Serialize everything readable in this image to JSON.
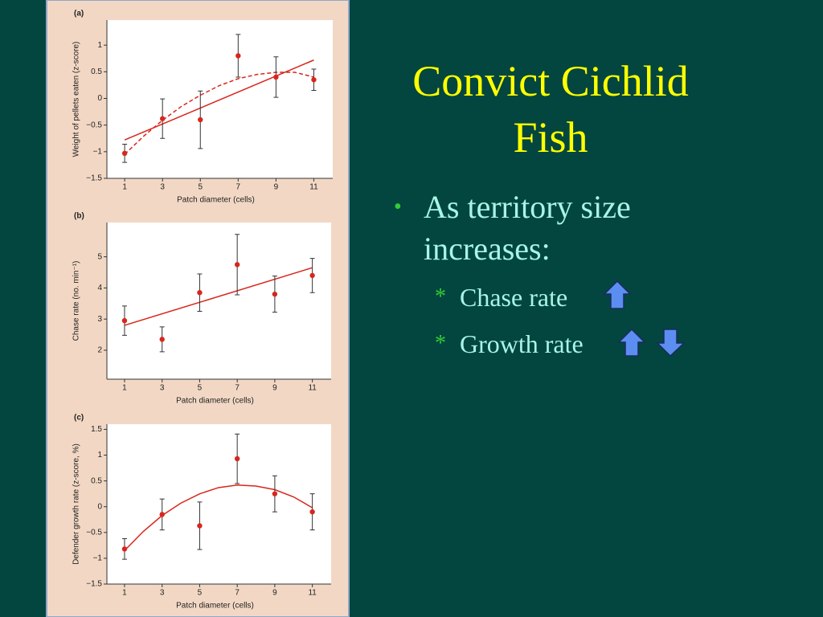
{
  "title": "Convict Cichlid Fish",
  "bullet": "As territory size increases:",
  "sub_bullets": [
    "Chase rate",
    "Growth rate"
  ],
  "chart_data": [
    {
      "type": "scatter",
      "panel": "(a)",
      "xlabel": "Patch diameter (cells)",
      "ylabel": "Weight of pellets eaten (z-score)",
      "x": [
        1,
        3,
        5,
        7,
        9,
        11
      ],
      "values": [
        -1.03,
        -0.38,
        -0.4,
        0.8,
        0.4,
        0.35
      ],
      "errors": [
        0.17,
        0.37,
        0.54,
        0.4,
        0.38,
        0.2
      ],
      "color": "#d8261c",
      "xlim": [
        0.06,
        12
      ],
      "ylim": [
        -1.5,
        1.47
      ],
      "xticks": [
        1,
        3,
        5,
        7,
        9,
        11
      ],
      "yticks": [
        {
          "value": -1.5,
          "label": "−1.5"
        },
        {
          "value": -1,
          "label": "−1"
        },
        {
          "value": -0.5,
          "label": "−0.5"
        },
        0,
        0.5,
        1
      ],
      "fits": [
        {
          "x": [
            1,
            11
          ],
          "values": [
            -0.78,
            0.72
          ],
          "dashed": false
        },
        {
          "x": [
            1,
            2,
            3,
            4,
            5,
            6,
            7,
            8,
            9,
            10,
            11
          ],
          "values": [
            -1.05,
            -0.71,
            -0.41,
            -0.15,
            0.06,
            0.24,
            0.37,
            0.45,
            0.49,
            0.49,
            0.4
          ],
          "dashed": true
        }
      ]
    },
    {
      "type": "scatter",
      "panel": "(b)",
      "xlabel": "Patch diameter (cells)",
      "ylabel": "Chase rate (no. min⁻¹)",
      "x": [
        1,
        3,
        5,
        7,
        9,
        11
      ],
      "values": [
        2.95,
        2.35,
        3.85,
        4.75,
        3.8,
        4.4
      ],
      "errors": [
        0.47,
        0.4,
        0.6,
        0.97,
        0.58,
        0.55
      ],
      "color": "#d8261c",
      "xlim": [
        0.06,
        12
      ],
      "ylim": [
        1.07,
        6.1
      ],
      "xticks": [
        1,
        3,
        5,
        7,
        9,
        11
      ],
      "yticks": [
        2,
        3,
        4,
        5
      ],
      "fits": [
        {
          "x": [
            1,
            11
          ],
          "values": [
            2.8,
            4.65
          ],
          "dashed": false
        }
      ]
    },
    {
      "type": "scatter",
      "panel": "(c)",
      "xlabel": "Patch diameter (cells)",
      "ylabel": "Defender growth rate (z-score, %)",
      "x": [
        1,
        3,
        5,
        7,
        9,
        11
      ],
      "values": [
        -0.82,
        -0.15,
        -0.37,
        0.93,
        0.25,
        -0.1
      ],
      "errors": [
        0.2,
        0.3,
        0.46,
        0.48,
        0.35,
        0.35
      ],
      "color": "#d8261c",
      "xlim": [
        0.06,
        12
      ],
      "ylim": [
        -1.5,
        1.6
      ],
      "xticks": [
        1,
        3,
        5,
        7,
        9,
        11
      ],
      "yticks": [
        {
          "value": -1.5,
          "label": "−1.5"
        },
        {
          "value": -1,
          "label": "−1"
        },
        {
          "value": -0.5,
          "label": "−0.5"
        },
        0,
        0.5,
        1,
        1.5
      ],
      "fits": [
        {
          "x": [
            1,
            2,
            3,
            4,
            5,
            6,
            7,
            8,
            9,
            10,
            11
          ],
          "values": [
            -0.85,
            -0.48,
            -0.17,
            0.07,
            0.25,
            0.37,
            0.42,
            0.4,
            0.33,
            0.19,
            -0.02
          ],
          "dashed": false
        }
      ]
    }
  ]
}
